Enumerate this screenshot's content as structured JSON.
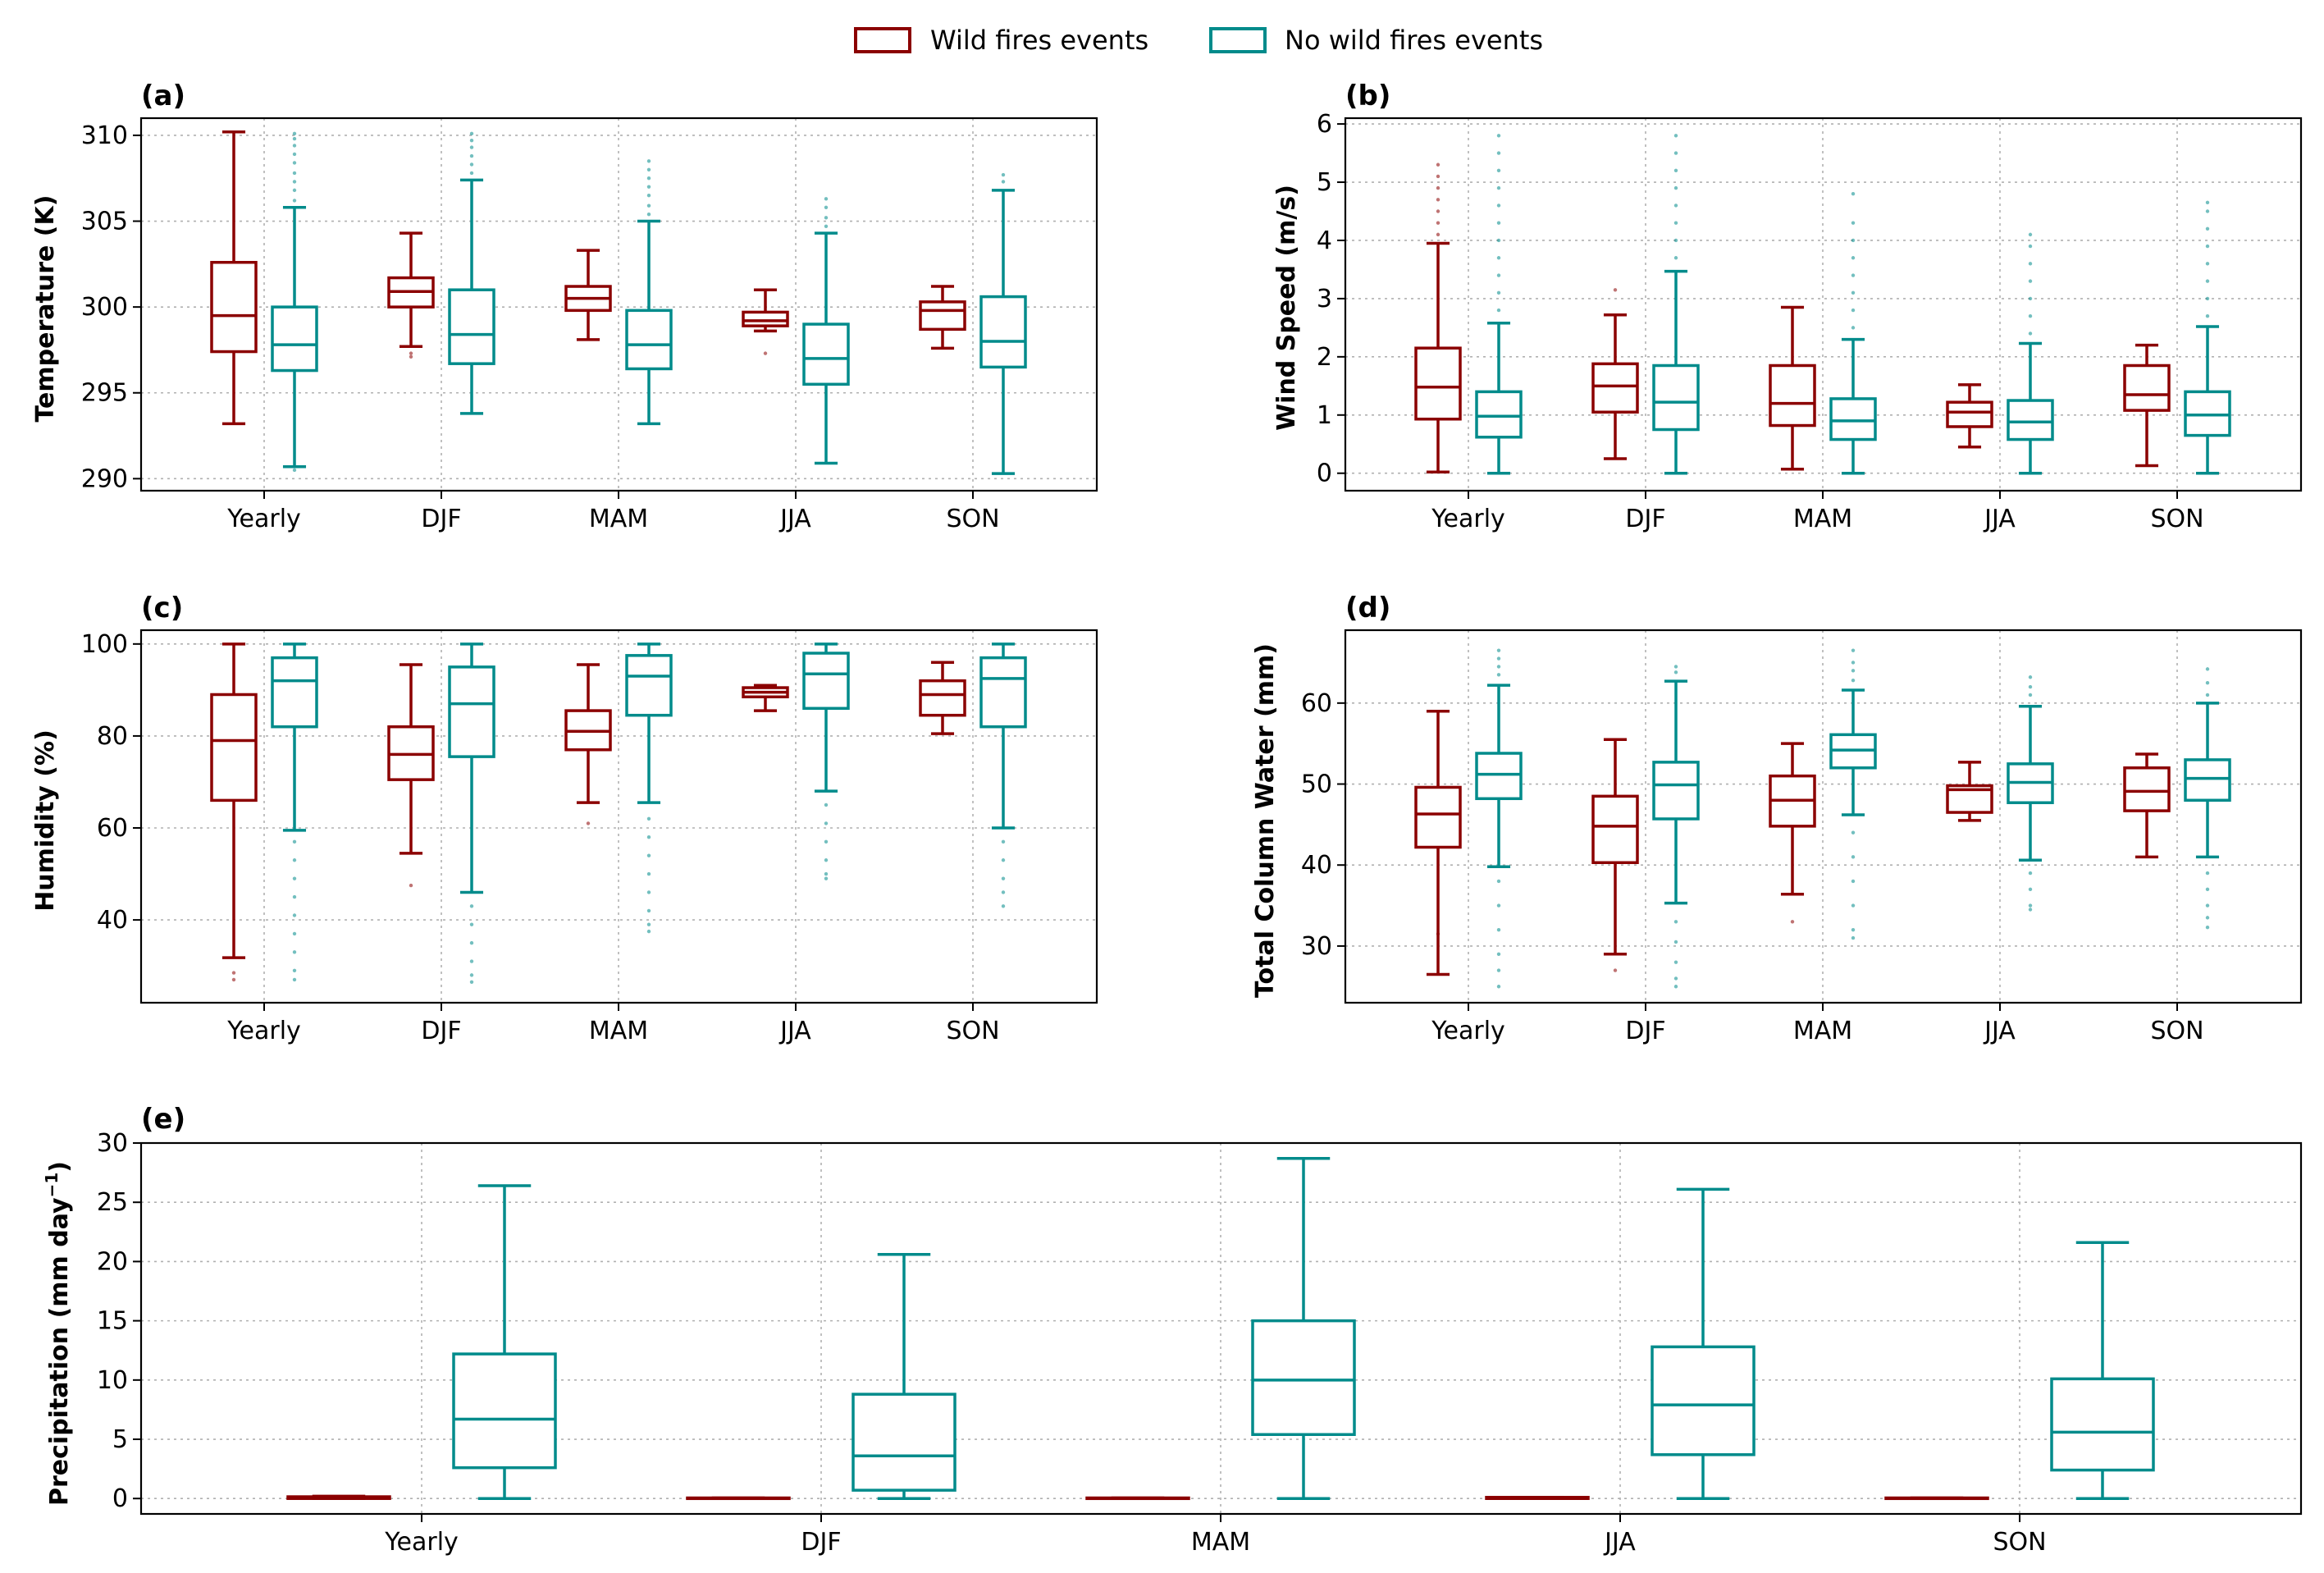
{
  "legend": {
    "items": [
      {
        "label": "Wild fires events",
        "color": "#8B0000"
      },
      {
        "label": "No wild fires events",
        "color": "#008B8B"
      }
    ]
  },
  "chart_data": [
    {
      "type": "box",
      "panel": "(a)",
      "ylabel": "Temperature (K)",
      "ylim": [
        289.3,
        311
      ],
      "yticks": [
        290,
        295,
        300,
        305,
        310
      ],
      "categories": [
        "Yearly",
        "DJF",
        "MAM",
        "JJA",
        "SON"
      ],
      "series": [
        {
          "name": "Wild fires events",
          "boxes": [
            {
              "whislo": 293.2,
              "q1": 297.4,
              "med": 299.5,
              "q3": 302.6,
              "whishi": 310.2,
              "fliers": []
            },
            {
              "whislo": 297.7,
              "q1": 300.0,
              "med": 300.9,
              "q3": 301.7,
              "whishi": 304.3,
              "fliers": [
                297.3,
                297.1
              ]
            },
            {
              "whislo": 298.1,
              "q1": 299.8,
              "med": 300.5,
              "q3": 301.2,
              "whishi": 303.3,
              "fliers": []
            },
            {
              "whislo": 298.6,
              "q1": 298.9,
              "med": 299.2,
              "q3": 299.7,
              "whishi": 301.0,
              "fliers": [
                297.3
              ]
            },
            {
              "whislo": 297.6,
              "q1": 298.7,
              "med": 299.8,
              "q3": 300.3,
              "whishi": 301.2,
              "fliers": []
            }
          ]
        },
        {
          "name": "No wild fires events",
          "boxes": [
            {
              "whislo": 290.7,
              "q1": 296.3,
              "med": 297.8,
              "q3": 300.0,
              "whishi": 305.8,
              "fliers": [
                290.5,
                306.2,
                306.8,
                307.3,
                307.8,
                308.4,
                308.9,
                309.4,
                309.8,
                310.1
              ]
            },
            {
              "whislo": 293.8,
              "q1": 296.7,
              "med": 298.4,
              "q3": 301.0,
              "whishi": 307.4,
              "fliers": [
                307.8,
                308.3,
                308.8,
                309.3,
                309.7,
                310.1
              ]
            },
            {
              "whislo": 293.2,
              "q1": 296.4,
              "med": 297.8,
              "q3": 299.8,
              "whishi": 305.0,
              "fliers": [
                305.4,
                305.9,
                306.5,
                307.0,
                307.5,
                308.0,
                308.5
              ]
            },
            {
              "whislo": 290.9,
              "q1": 295.5,
              "med": 297.0,
              "q3": 299.0,
              "whishi": 304.3,
              "fliers": [
                304.7,
                305.2,
                305.8,
                306.3
              ]
            },
            {
              "whislo": 290.3,
              "q1": 296.5,
              "med": 298.0,
              "q3": 300.6,
              "whishi": 306.8,
              "fliers": [
                307.3,
                307.7
              ]
            }
          ]
        }
      ]
    },
    {
      "type": "box",
      "panel": "(b)",
      "ylabel": "Wind Speed (m/s)",
      "ylim": [
        -0.3,
        6.1
      ],
      "yticks": [
        0,
        1,
        2,
        3,
        4,
        5,
        6
      ],
      "categories": [
        "Yearly",
        "DJF",
        "MAM",
        "JJA",
        "SON"
      ],
      "series": [
        {
          "name": "Wild fires events",
          "boxes": [
            {
              "whislo": 0.02,
              "q1": 0.93,
              "med": 1.48,
              "q3": 2.15,
              "whishi": 3.95,
              "fliers": [
                4.1,
                4.3,
                4.5,
                4.7,
                4.9,
                5.1,
                5.3
              ]
            },
            {
              "whislo": 0.25,
              "q1": 1.05,
              "med": 1.5,
              "q3": 1.88,
              "whishi": 2.72,
              "fliers": [
                3.15
              ]
            },
            {
              "whislo": 0.07,
              "q1": 0.82,
              "med": 1.2,
              "q3": 1.85,
              "whishi": 2.85,
              "fliers": []
            },
            {
              "whislo": 0.45,
              "q1": 0.8,
              "med": 1.05,
              "q3": 1.22,
              "whishi": 1.52,
              "fliers": []
            },
            {
              "whislo": 0.13,
              "q1": 1.08,
              "med": 1.35,
              "q3": 1.85,
              "whishi": 2.2,
              "fliers": []
            }
          ]
        },
        {
          "name": "No wild fires events",
          "boxes": [
            {
              "whislo": 0.0,
              "q1": 0.62,
              "med": 0.98,
              "q3": 1.4,
              "whishi": 2.58,
              "fliers": [
                2.8,
                3.1,
                3.4,
                3.7,
                4.0,
                4.3,
                4.6,
                4.9,
                5.2,
                5.5,
                5.8
              ]
            },
            {
              "whislo": 0.0,
              "q1": 0.75,
              "med": 1.22,
              "q3": 1.85,
              "whishi": 3.47,
              "fliers": [
                3.7,
                4.0,
                4.3,
                4.6,
                4.9,
                5.2,
                5.5,
                5.8
              ]
            },
            {
              "whislo": 0.0,
              "q1": 0.58,
              "med": 0.9,
              "q3": 1.28,
              "whishi": 2.3,
              "fliers": [
                2.5,
                2.8,
                3.1,
                3.4,
                3.7,
                4.0,
                4.3,
                4.8
              ]
            },
            {
              "whislo": 0.0,
              "q1": 0.58,
              "med": 0.88,
              "q3": 1.25,
              "whishi": 2.23,
              "fliers": [
                2.4,
                2.7,
                3.0,
                3.3,
                3.6,
                3.9,
                4.1
              ]
            },
            {
              "whislo": 0.0,
              "q1": 0.65,
              "med": 1.0,
              "q3": 1.4,
              "whishi": 2.52,
              "fliers": [
                2.7,
                3.0,
                3.3,
                3.6,
                3.9,
                4.2,
                4.5,
                4.65
              ]
            }
          ]
        }
      ]
    },
    {
      "type": "box",
      "panel": "(c)",
      "ylabel": "Humidity (%)",
      "ylim": [
        22,
        103
      ],
      "yticks": [
        40,
        60,
        80,
        100
      ],
      "categories": [
        "Yearly",
        "DJF",
        "MAM",
        "JJA",
        "SON"
      ],
      "series": [
        {
          "name": "Wild fires events",
          "boxes": [
            {
              "whislo": 31.8,
              "q1": 66.0,
              "med": 79.0,
              "q3": 89.0,
              "whishi": 100.0,
              "fliers": [
                28.5,
                27.0
              ]
            },
            {
              "whislo": 54.5,
              "q1": 70.5,
              "med": 76.0,
              "q3": 82.0,
              "whishi": 95.5,
              "fliers": [
                47.5
              ]
            },
            {
              "whislo": 65.5,
              "q1": 77.0,
              "med": 81.0,
              "q3": 85.5,
              "whishi": 95.5,
              "fliers": [
                61.0
              ]
            },
            {
              "whislo": 85.5,
              "q1": 88.5,
              "med": 89.5,
              "q3": 90.5,
              "whishi": 91.0,
              "fliers": []
            },
            {
              "whislo": 80.5,
              "q1": 84.5,
              "med": 89.0,
              "q3": 92.0,
              "whishi": 96.0,
              "fliers": []
            }
          ]
        },
        {
          "name": "No wild fires events",
          "boxes": [
            {
              "whislo": 59.5,
              "q1": 82.0,
              "med": 92.0,
              "q3": 97.0,
              "whishi": 100.0,
              "fliers": [
                57.0,
                53.0,
                49.0,
                45.0,
                41.0,
                37.0,
                33.0,
                29.0,
                27.0
              ]
            },
            {
              "whislo": 46.0,
              "q1": 75.5,
              "med": 87.0,
              "q3": 95.0,
              "whishi": 100.0,
              "fliers": [
                43.0,
                39.0,
                35.0,
                31.0,
                28.0,
                26.5
              ]
            },
            {
              "whislo": 65.5,
              "q1": 84.5,
              "med": 93.0,
              "q3": 97.5,
              "whishi": 100.0,
              "fliers": [
                62.0,
                58.0,
                54.0,
                50.0,
                46.0,
                42.0,
                39.0,
                37.5
              ]
            },
            {
              "whislo": 68.0,
              "q1": 86.0,
              "med": 93.5,
              "q3": 98.0,
              "whishi": 100.0,
              "fliers": [
                65.0,
                61.0,
                57.0,
                53.0,
                50.0,
                49.0
              ]
            },
            {
              "whislo": 60.0,
              "q1": 82.0,
              "med": 92.5,
              "q3": 97.0,
              "whishi": 100.0,
              "fliers": [
                57.0,
                53.0,
                49.0,
                46.0,
                43.0
              ]
            }
          ]
        }
      ]
    },
    {
      "type": "box",
      "panel": "(d)",
      "ylabel": "Total Column Water (mm)",
      "ylim": [
        23,
        69
      ],
      "yticks": [
        30,
        40,
        50,
        60
      ],
      "categories": [
        "Yearly",
        "DJF",
        "MAM",
        "JJA",
        "SON"
      ],
      "series": [
        {
          "name": "Wild fires events",
          "boxes": [
            {
              "whislo": 26.5,
              "q1": 42.2,
              "med": 46.3,
              "q3": 49.6,
              "whishi": 59.0,
              "fliers": [
                31.5
              ]
            },
            {
              "whislo": 29.0,
              "q1": 40.3,
              "med": 44.8,
              "q3": 48.5,
              "whishi": 55.5,
              "fliers": [
                27.0
              ]
            },
            {
              "whislo": 36.4,
              "q1": 44.8,
              "med": 48.0,
              "q3": 51.0,
              "whishi": 55.0,
              "fliers": [
                33.0
              ]
            },
            {
              "whislo": 45.5,
              "q1": 46.5,
              "med": 49.3,
              "q3": 49.8,
              "whishi": 52.7,
              "fliers": []
            },
            {
              "whislo": 41.0,
              "q1": 46.7,
              "med": 49.1,
              "q3": 52.0,
              "whishi": 53.7,
              "fliers": []
            }
          ]
        },
        {
          "name": "No wild fires events",
          "boxes": [
            {
              "whislo": 39.8,
              "q1": 48.2,
              "med": 51.2,
              "q3": 53.8,
              "whishi": 62.2,
              "fliers": [
                38.0,
                35.0,
                32.0,
                29.0,
                27.0,
                25.0,
                63.5,
                64.5,
                65.5,
                66.5
              ]
            },
            {
              "whislo": 35.3,
              "q1": 45.7,
              "med": 49.9,
              "q3": 52.7,
              "whishi": 62.7,
              "fliers": [
                33.0,
                30.5,
                28.0,
                26.0,
                25.0,
                63.8,
                64.5
              ]
            },
            {
              "whislo": 46.2,
              "q1": 52.0,
              "med": 54.2,
              "q3": 56.1,
              "whishi": 61.6,
              "fliers": [
                44.0,
                41.0,
                38.0,
                35.0,
                32.0,
                31.0,
                62.8,
                64.0,
                65.0,
                66.5
              ]
            },
            {
              "whislo": 40.6,
              "q1": 47.7,
              "med": 50.2,
              "q3": 52.5,
              "whishi": 59.6,
              "fliers": [
                39.0,
                37.0,
                35.0,
                34.5,
                61.0,
                62.0,
                63.2
              ]
            },
            {
              "whislo": 41.0,
              "q1": 48.0,
              "med": 50.7,
              "q3": 53.0,
              "whishi": 60.0,
              "fliers": [
                39.0,
                37.0,
                35.0,
                33.5,
                32.3,
                61.0,
                62.5,
                64.2
              ]
            }
          ]
        }
      ]
    },
    {
      "type": "box",
      "panel": "(e)",
      "ylabel": "Precipitation (mm day",
      "ylabel_sup": "−1",
      "ylabel_end": ")",
      "ylim": [
        -1.3,
        30
      ],
      "yticks": [
        0,
        5,
        10,
        15,
        20,
        25,
        30
      ],
      "categories": [
        "Yearly",
        "DJF",
        "MAM",
        "JJA",
        "SON"
      ],
      "series": [
        {
          "name": "Wild fires events",
          "boxes": [
            {
              "whislo": 0,
              "q1": 0,
              "med": 0.05,
              "q3": 0.15,
              "whishi": 0.2,
              "fliers": []
            },
            {
              "whislo": 0,
              "q1": 0,
              "med": 0,
              "q3": 0.05,
              "whishi": 0.05,
              "fliers": []
            },
            {
              "whislo": 0,
              "q1": 0,
              "med": 0,
              "q3": 0.05,
              "whishi": 0.05,
              "fliers": []
            },
            {
              "whislo": 0,
              "q1": 0,
              "med": 0,
              "q3": 0.1,
              "whishi": 0.1,
              "fliers": []
            },
            {
              "whislo": 0,
              "q1": 0,
              "med": 0,
              "q3": 0.05,
              "whishi": 0.05,
              "fliers": []
            }
          ]
        },
        {
          "name": "No wild fires events",
          "boxes": [
            {
              "whislo": 0,
              "q1": 2.6,
              "med": 6.7,
              "q3": 12.2,
              "whishi": 26.4,
              "fliers": []
            },
            {
              "whislo": 0,
              "q1": 0.7,
              "med": 3.6,
              "q3": 8.8,
              "whishi": 20.6,
              "fliers": []
            },
            {
              "whislo": 0,
              "q1": 5.4,
              "med": 10.0,
              "q3": 15.0,
              "whishi": 28.7,
              "fliers": []
            },
            {
              "whislo": 0,
              "q1": 3.7,
              "med": 7.9,
              "q3": 12.8,
              "whishi": 26.1,
              "fliers": []
            },
            {
              "whislo": 0,
              "q1": 2.4,
              "med": 5.6,
              "q3": 10.1,
              "whishi": 21.6,
              "fliers": []
            }
          ]
        }
      ]
    }
  ]
}
